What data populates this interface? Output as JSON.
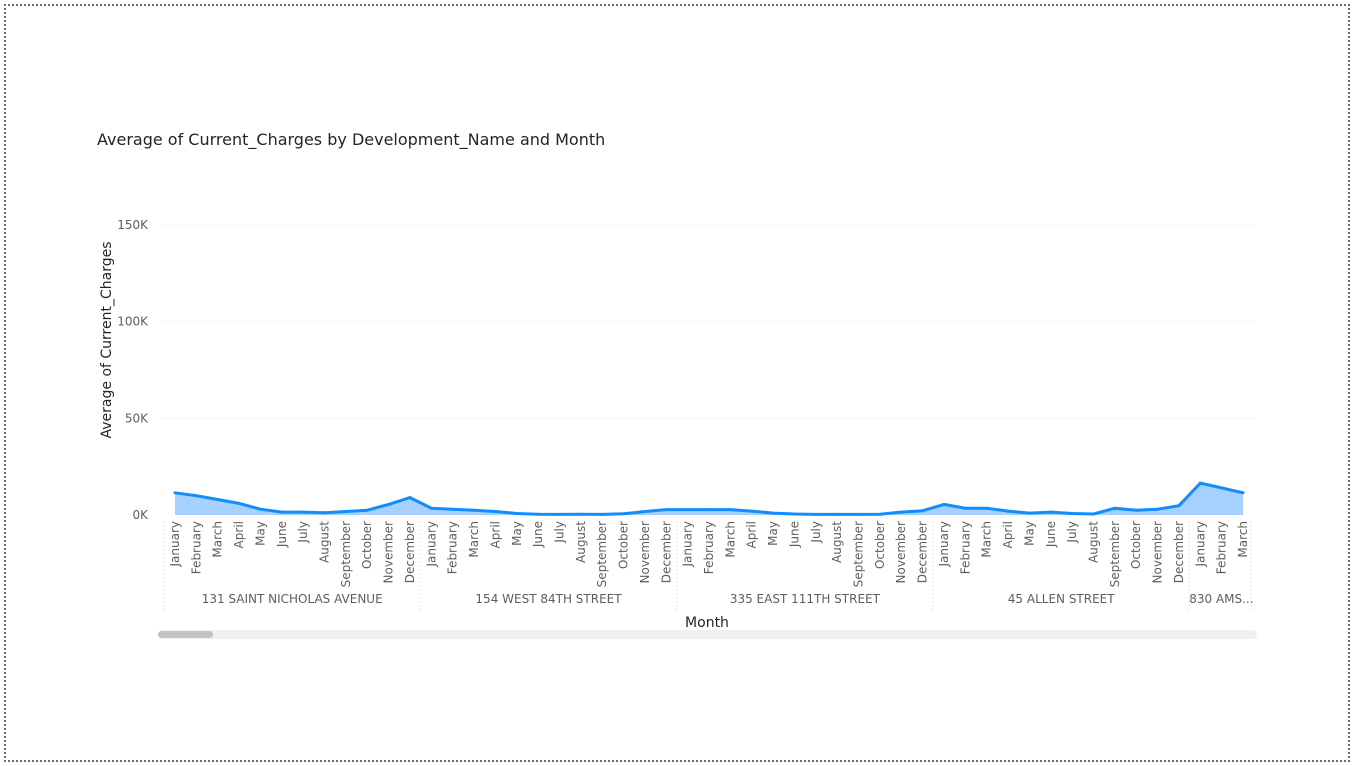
{
  "visual": {
    "title": "Average of Current_Charges by Development_Name and Month"
  },
  "chart_data": {
    "type": "area",
    "title": "Average of Current_Charges by Development_Name and Month",
    "xlabel": "Month",
    "ylabel": "Average of Current_Charges",
    "ylim": [
      0,
      150000
    ],
    "yticks": [
      0,
      50000,
      100000,
      150000
    ],
    "ytick_labels": [
      "0K",
      "50K",
      "100K",
      "150K"
    ],
    "grid": true,
    "line_color": "#118DFF",
    "fill_color": "#A6D0FF",
    "groups": [
      {
        "name": "131 SAINT NICHOLAS AVENUE",
        "months": [
          "January",
          "February",
          "March",
          "April",
          "May",
          "June",
          "July",
          "August",
          "September",
          "October",
          "November",
          "December"
        ],
        "values": [
          11500,
          10000,
          8000,
          6000,
          3000,
          1500,
          1500,
          1200,
          1800,
          2500,
          5500,
          9000
        ]
      },
      {
        "name": "154 WEST 84TH STREET",
        "months": [
          "January",
          "February",
          "March",
          "April",
          "May",
          "June",
          "July",
          "August",
          "September",
          "October",
          "November",
          "December"
        ],
        "values": [
          3500,
          3000,
          2500,
          1800,
          800,
          400,
          300,
          400,
          300,
          600,
          1800,
          2800
        ]
      },
      {
        "name": "335 EAST 111TH STREET",
        "months": [
          "January",
          "February",
          "March",
          "April",
          "May",
          "June",
          "July",
          "August",
          "September",
          "October",
          "November",
          "December"
        ],
        "values": [
          2800,
          2800,
          2800,
          2000,
          1000,
          500,
          300,
          300,
          300,
          400,
          1500,
          2200
        ]
      },
      {
        "name": "45 ALLEN STREET",
        "months": [
          "January",
          "February",
          "March",
          "April",
          "May",
          "June",
          "July",
          "August",
          "September",
          "October",
          "November",
          "December"
        ],
        "values": [
          5500,
          3500,
          3500,
          2000,
          1000,
          1500,
          800,
          500,
          3500,
          2500,
          3000,
          4800
        ]
      },
      {
        "name": "830 AMS...",
        "months": [
          "January",
          "February",
          "March"
        ],
        "values": [
          16500,
          14000,
          11500
        ]
      }
    ]
  }
}
